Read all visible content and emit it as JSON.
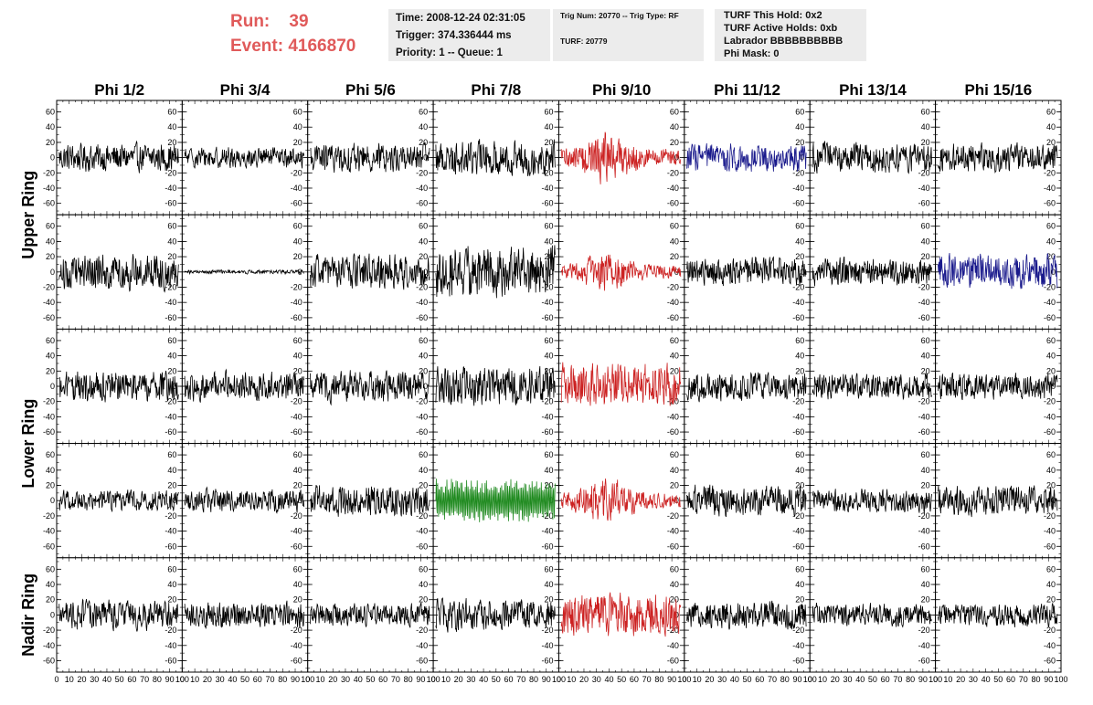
{
  "header": {
    "run_label": "Run:",
    "run_value": "39",
    "event_label": "Event:",
    "event_value": "4166870",
    "time": "Time: 2008-12-24 02:31:05",
    "trigger": "Trigger: 374.336444 ms",
    "priority": "Priority: 1 -- Queue: 1",
    "trig_num": "Trig Num: 20770 -- Trig Type: RF",
    "turf_num": "TURF: 20779",
    "turf_this_hold": "TURF This Hold: 0x2",
    "turf_active_holds": "TURF Active Holds: 0xb",
    "labrador": "Labrador BBBBBBBBBB",
    "phi_mask": "Phi Mask: 0"
  },
  "chart_data": {
    "type": "line",
    "columns": [
      "Phi 1/2",
      "Phi 3/4",
      "Phi 5/6",
      "Phi 7/8",
      "Phi 9/10",
      "Phi 11/12",
      "Phi 13/14",
      "Phi 15/16"
    ],
    "ring_labels": [
      {
        "text": "Upper Ring",
        "rows": [
          0,
          1
        ]
      },
      {
        "text": "Lower Ring",
        "rows": [
          2,
          3
        ]
      },
      {
        "text": "Nadir Ring",
        "rows": [
          4
        ]
      }
    ],
    "ylim": [
      -75,
      75
    ],
    "y_ticks": [
      -60,
      -40,
      -20,
      0,
      20,
      40,
      60
    ],
    "xlim": [
      0,
      100
    ],
    "x_ticks": [
      0,
      10,
      20,
      30,
      40,
      50,
      60,
      70,
      80,
      90,
      100
    ],
    "colors": {
      "normal": "#000000",
      "red": "#cc2222",
      "blue": "#1a1a8c",
      "green": "#1f8a1f"
    },
    "panels": [
      {
        "row": 0,
        "col": 0,
        "color": "normal",
        "amplitude": 22
      },
      {
        "row": 0,
        "col": 1,
        "color": "normal",
        "amplitude": 16
      },
      {
        "row": 0,
        "col": 2,
        "color": "normal",
        "amplitude": 22
      },
      {
        "row": 0,
        "col": 3,
        "color": "normal",
        "amplitude": 27
      },
      {
        "row": 0,
        "col": 4,
        "color": "red",
        "amplitude": 40,
        "burst": true
      },
      {
        "row": 0,
        "col": 5,
        "color": "blue",
        "amplitude": 22
      },
      {
        "row": 0,
        "col": 6,
        "color": "normal",
        "amplitude": 23
      },
      {
        "row": 0,
        "col": 7,
        "color": "normal",
        "amplitude": 22
      },
      {
        "row": 1,
        "col": 0,
        "color": "normal",
        "amplitude": 27
      },
      {
        "row": 1,
        "col": 1,
        "color": "normal",
        "amplitude": 3
      },
      {
        "row": 1,
        "col": 2,
        "color": "normal",
        "amplitude": 27
      },
      {
        "row": 1,
        "col": 3,
        "color": "normal",
        "amplitude": 40
      },
      {
        "row": 1,
        "col": 4,
        "color": "red",
        "amplitude": 30,
        "burst": true
      },
      {
        "row": 1,
        "col": 5,
        "color": "normal",
        "amplitude": 22
      },
      {
        "row": 1,
        "col": 6,
        "color": "normal",
        "amplitude": 22
      },
      {
        "row": 1,
        "col": 7,
        "color": "blue",
        "amplitude": 27
      },
      {
        "row": 2,
        "col": 0,
        "color": "normal",
        "amplitude": 24
      },
      {
        "row": 2,
        "col": 1,
        "color": "normal",
        "amplitude": 23
      },
      {
        "row": 2,
        "col": 2,
        "color": "normal",
        "amplitude": 25
      },
      {
        "row": 2,
        "col": 3,
        "color": "normal",
        "amplitude": 30
      },
      {
        "row": 2,
        "col": 4,
        "color": "red",
        "amplitude": 35
      },
      {
        "row": 2,
        "col": 5,
        "color": "normal",
        "amplitude": 22
      },
      {
        "row": 2,
        "col": 6,
        "color": "normal",
        "amplitude": 21
      },
      {
        "row": 2,
        "col": 7,
        "color": "normal",
        "amplitude": 21
      },
      {
        "row": 3,
        "col": 0,
        "color": "normal",
        "amplitude": 16
      },
      {
        "row": 3,
        "col": 1,
        "color": "normal",
        "amplitude": 18
      },
      {
        "row": 3,
        "col": 2,
        "color": "normal",
        "amplitude": 24
      },
      {
        "row": 3,
        "col": 3,
        "color": "green",
        "amplitude": 42
      },
      {
        "row": 3,
        "col": 4,
        "color": "red",
        "amplitude": 35,
        "burst": true
      },
      {
        "row": 3,
        "col": 5,
        "color": "normal",
        "amplitude": 23
      },
      {
        "row": 3,
        "col": 6,
        "color": "normal",
        "amplitude": 18
      },
      {
        "row": 3,
        "col": 7,
        "color": "normal",
        "amplitude": 23
      },
      {
        "row": 4,
        "col": 0,
        "color": "normal",
        "amplitude": 23
      },
      {
        "row": 4,
        "col": 1,
        "color": "normal",
        "amplitude": 20
      },
      {
        "row": 4,
        "col": 2,
        "color": "normal",
        "amplitude": 18
      },
      {
        "row": 4,
        "col": 3,
        "color": "normal",
        "amplitude": 25
      },
      {
        "row": 4,
        "col": 4,
        "color": "red",
        "amplitude": 33
      },
      {
        "row": 4,
        "col": 5,
        "color": "normal",
        "amplitude": 22
      },
      {
        "row": 4,
        "col": 6,
        "color": "normal",
        "amplitude": 18
      },
      {
        "row": 4,
        "col": 7,
        "color": "normal",
        "amplitude": 18
      }
    ]
  }
}
